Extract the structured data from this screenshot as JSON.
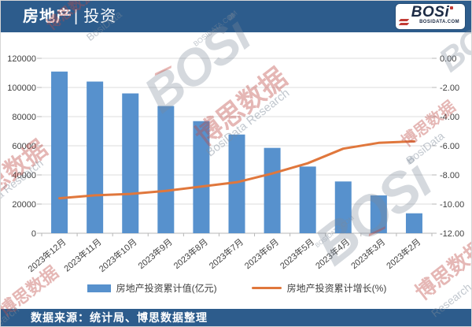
{
  "header": {
    "title_main": "房地产",
    "title_divider": "|",
    "title_sub": "投资",
    "logo": {
      "text": "BOSi",
      "subtext": "BOSIDATA.COM"
    }
  },
  "footer": {
    "source_label": "数据来源：统计局、博思数据整理"
  },
  "colors": {
    "header_bg": "#2d5c8c",
    "footer_bg": "#2d5c8c",
    "bar": "#5791cd",
    "line": "#e0773c",
    "grid": "#dcdcdc",
    "axis_line": "#b7b7b7",
    "axis_text": "#3f3f3f",
    "watermark_red": "#c04b46",
    "watermark_gray": "#7d8a99"
  },
  "watermarks": {
    "cn": "博思数据",
    "en": "BosiData Research",
    "bosidata": "BosiData",
    "research": "Research",
    "search": "search",
    "logo": "BOSi",
    "site": "BOSIDATA.COM"
  },
  "chart_data": {
    "type": "bar",
    "subtype": "bar+line combo, dual axis",
    "title": "房地产| 投资",
    "categories": [
      "2023年12月",
      "2023年11月",
      "2023年10月",
      "2023年9月",
      "2023年8月",
      "2023年7月",
      "2023年6月",
      "2023年5月",
      "2023年4月",
      "2023年3月",
      "2023年2月"
    ],
    "series": [
      {
        "name": "房地产投资累计值(亿元)",
        "type": "bar",
        "axis": "left",
        "color": "#5791cd",
        "values": [
          110913,
          104045,
          95922,
          87269,
          76900,
          67717,
          58550,
          45748,
          35514,
          25974,
          13669
        ]
      },
      {
        "name": "房地产投资累计增长(%)",
        "type": "line",
        "axis": "right",
        "color": "#e0773c",
        "values": [
          -9.6,
          -9.4,
          -9.3,
          -9.1,
          -8.8,
          -8.5,
          -7.9,
          -7.2,
          -6.2,
          -5.8,
          -5.7
        ]
      }
    ],
    "left_axis": {
      "min": 0,
      "max": 120000,
      "step": 20000,
      "ticks": [
        "120000",
        "100000",
        "80000",
        "60000",
        "40000",
        "20000",
        "0"
      ]
    },
    "right_axis": {
      "min": -12,
      "max": 0,
      "step": 2,
      "ticks": [
        "0.00",
        "-2.00",
        "-4.00",
        "-6.00",
        "-8.00",
        "-10.00",
        "-12.00"
      ]
    },
    "legend_position": "bottom",
    "grid": "horizontal"
  }
}
